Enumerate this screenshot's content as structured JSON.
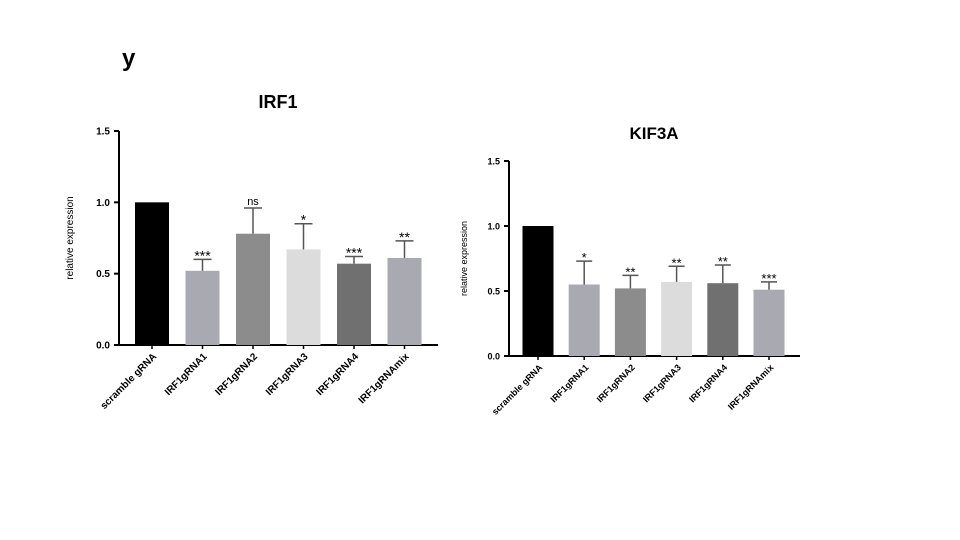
{
  "panel_letter_fragment": "y",
  "chart_data": [
    {
      "type": "bar",
      "title": "IRF1",
      "ylabel": "relative expression",
      "xlabel": "",
      "ylim": [
        0,
        1.5
      ],
      "yticks": [
        "0.0",
        "0.5",
        "1.0",
        "1.5"
      ],
      "categories": [
        "scramble gRNA",
        "IRF1gRNA1",
        "IRF1gRNA2",
        "IRF1gRNA3",
        "IRF1gRNA4",
        "IRF1gRNAmix"
      ],
      "values": [
        1.0,
        0.52,
        0.78,
        0.67,
        0.57,
        0.61
      ],
      "errors": [
        0.0,
        0.08,
        0.18,
        0.18,
        0.05,
        0.12
      ],
      "significance": [
        "",
        "***",
        "ns",
        "*",
        "***",
        "**"
      ],
      "colors": [
        "#000000",
        "#a9a9b1",
        "#8c8c8c",
        "#dcdcdc",
        "#707070",
        "#a9a9b1"
      ],
      "grid": false
    },
    {
      "type": "bar",
      "title": "KIF3A",
      "ylabel": "relative expression",
      "xlabel": "",
      "ylim": [
        0,
        1.5
      ],
      "yticks": [
        "0.0",
        "0.5",
        "1.0",
        "1.5"
      ],
      "categories": [
        "scramble gRNA",
        "IRF1gRNA1",
        "IRF1gRNA2",
        "IRF1gRNA3",
        "IRF1gRNA4",
        "IRF1gRNAmix"
      ],
      "values": [
        1.0,
        0.55,
        0.52,
        0.57,
        0.56,
        0.51
      ],
      "errors": [
        0.0,
        0.18,
        0.1,
        0.12,
        0.14,
        0.06
      ],
      "significance": [
        "",
        "*",
        "**",
        "**",
        "**",
        "***"
      ],
      "colors": [
        "#000000",
        "#a9a9b1",
        "#8c8c8c",
        "#dcdcdc",
        "#707070",
        "#a9a9b1"
      ],
      "grid": false
    }
  ]
}
